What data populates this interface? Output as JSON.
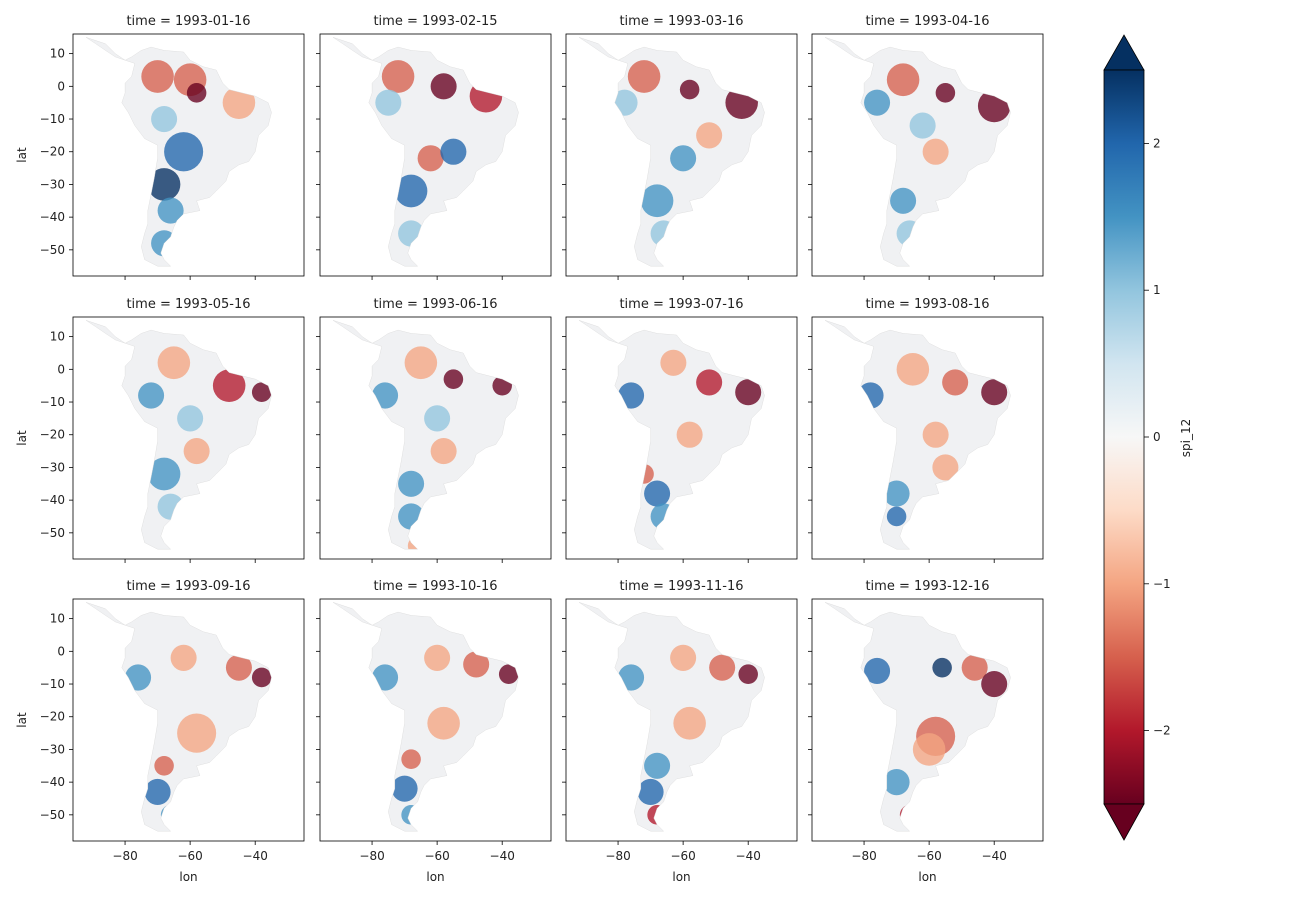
{
  "chart_data": {
    "type": "heatmap",
    "layout": {
      "rows": 3,
      "cols": 4
    },
    "panels": [
      {
        "title": "time = 1993-01-16"
      },
      {
        "title": "time = 1993-02-15"
      },
      {
        "title": "time = 1993-03-16"
      },
      {
        "title": "time = 1993-04-16"
      },
      {
        "title": "time = 1993-05-16"
      },
      {
        "title": "time = 1993-06-16"
      },
      {
        "title": "time = 1993-07-16"
      },
      {
        "title": "time = 1993-08-16"
      },
      {
        "title": "time = 1993-09-16"
      },
      {
        "title": "time = 1993-10-16"
      },
      {
        "title": "time = 1993-11-16"
      },
      {
        "title": "time = 1993-12-16"
      }
    ],
    "xlabel": "lon",
    "ylabel": "lat",
    "xlim": [
      -96,
      -25
    ],
    "ylim": [
      -58,
      16
    ],
    "xticks": [
      -80,
      -60,
      -40
    ],
    "xtick_labels": [
      "−80",
      "−60",
      "−40"
    ],
    "yticks": [
      10,
      0,
      -10,
      -20,
      -30,
      -40,
      -50
    ],
    "ytick_labels": [
      "10",
      "0",
      "−10",
      "−20",
      "−30",
      "−40",
      "−50"
    ],
    "colorbar": {
      "label": "spi_12",
      "colormap": "RdBu",
      "range": [
        -2.5,
        2.5
      ],
      "extend": "both",
      "ticks": [
        2,
        1,
        0,
        -1,
        -2
      ],
      "tick_labels": [
        "2",
        "1",
        "0",
        "−1",
        "−2"
      ]
    }
  }
}
